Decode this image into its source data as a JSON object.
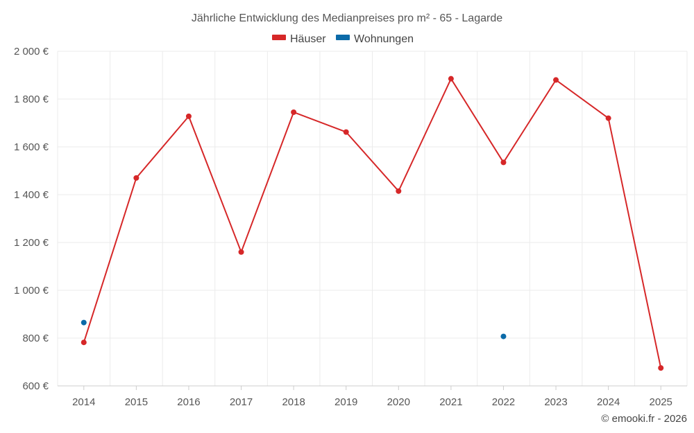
{
  "chart_data": {
    "type": "line",
    "title": "Jährliche Entwicklung des Medianpreises pro m² - 65 - Lagarde",
    "categories": [
      "2014",
      "2015",
      "2016",
      "2017",
      "2018",
      "2019",
      "2020",
      "2021",
      "2022",
      "2023",
      "2024",
      "2025"
    ],
    "ylim": [
      600,
      2000
    ],
    "y_ticks": [
      600,
      800,
      1000,
      1200,
      1400,
      1600,
      1800,
      2000
    ],
    "y_tick_labels": [
      "600 €",
      "800 €",
      "1 000 €",
      "1 200 €",
      "1 400 €",
      "1 600 €",
      "1 800 €",
      "2 000 €"
    ],
    "grid": true,
    "legend_position": "top-center",
    "series": [
      {
        "name": "Häuser",
        "color": "#d62728",
        "values": [
          782,
          1470,
          1728,
          1160,
          1745,
          1662,
          1415,
          1885,
          1535,
          1880,
          1720,
          675
        ]
      },
      {
        "name": "Wohnungen",
        "color": "#0b6aa8",
        "values": [
          865,
          null,
          null,
          null,
          null,
          null,
          null,
          null,
          807,
          null,
          null,
          null
        ]
      }
    ]
  },
  "footer": {
    "copyright": "© emooki.fr - 2026"
  }
}
